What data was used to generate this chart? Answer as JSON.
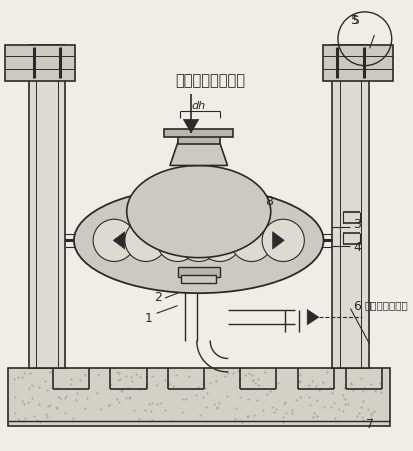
{
  "bg_color": "#f0ede6",
  "line_color": "#2a2a2a",
  "fill_light": "#dedad2",
  "fill_mid": "#ccc9c0",
  "fill_dark": "#b8b5ac",
  "label_forced_medium": "强制介质（空气）",
  "label_working_medium": "工作介质（水）",
  "label_dh": "dh",
  "figsize": [
    4.14,
    4.52
  ],
  "dpi": 100
}
